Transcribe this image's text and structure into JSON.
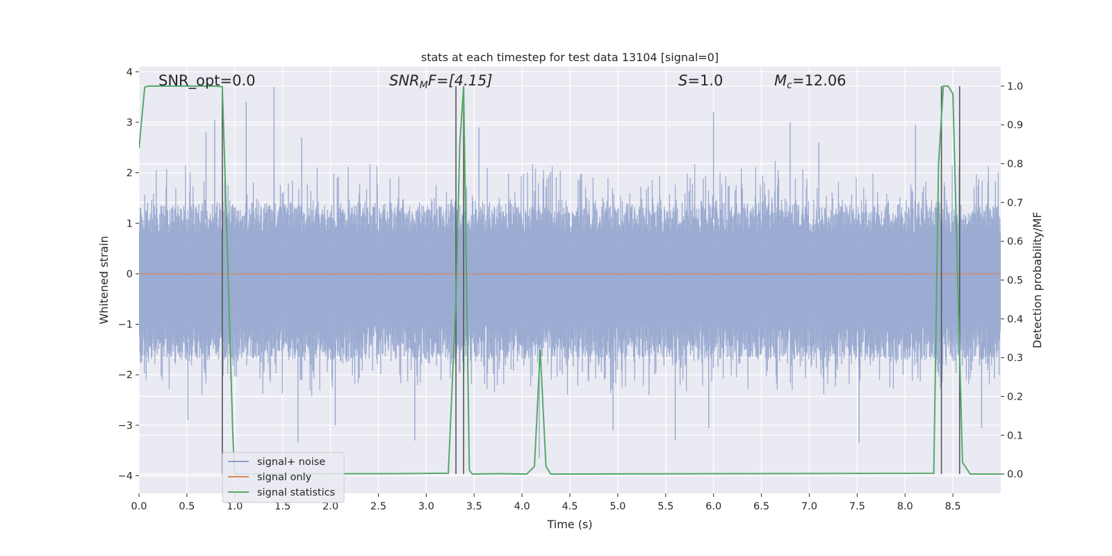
{
  "chart_data": {
    "type": "line",
    "title": "stats at each timestep for test data 13104 [signal=0]",
    "xlabel": "Time (s)",
    "ylabel_left": "Whitened strain",
    "ylabel_right": "Detection probability/MF",
    "xlim": [
      0,
      9.0
    ],
    "ylim_left": [
      -4.35,
      4.1
    ],
    "ylim_right": [
      -0.05,
      1.05
    ],
    "x_ticks": [
      0.0,
      0.5,
      1.0,
      1.5,
      2.0,
      2.5,
      3.0,
      3.5,
      4.0,
      4.5,
      5.0,
      5.5,
      6.0,
      6.5,
      7.0,
      7.5,
      8.0,
      8.5
    ],
    "x_tick_labels": [
      "0.0",
      "0.5",
      "1.0",
      "1.5",
      "2.0",
      "2.5",
      "3.0",
      "3.5",
      "4.0",
      "4.5",
      "5.0",
      "5.5",
      "6.0",
      "6.5",
      "7.0",
      "7.5",
      "8.0",
      "8.5"
    ],
    "y_left_ticks": [
      4,
      3,
      2,
      1,
      0,
      -1,
      -2,
      -3,
      -4
    ],
    "y_left_tick_labels": [
      "4",
      "3",
      "2",
      "1",
      "0",
      "−1",
      "−2",
      "−3",
      "−4"
    ],
    "y_right_ticks": [
      1.0,
      0.9,
      0.8,
      0.7,
      0.6,
      0.5,
      0.4,
      0.3,
      0.2,
      0.1,
      0.0
    ],
    "y_right_tick_labels": [
      "1.0",
      "0.9",
      "0.8",
      "0.7",
      "0.6",
      "0.5",
      "0.4",
      "0.3",
      "0.2",
      "0.1",
      "0.0"
    ],
    "grid": true,
    "legend_position": "lower-left",
    "annotations": {
      "snr_opt": "SNR_opt=0.0",
      "snr_mf_prefix": "SNR",
      "snr_mf_sub": "M",
      "snr_mf_suffix": "F=[4.15]",
      "s_prefix": "S",
      "s_suffix": "=1.0",
      "mc_prefix": "M",
      "mc_sub": "c",
      "mc_suffix": "=12.06"
    },
    "series": [
      {
        "name": "signal+ noise",
        "color": "#8da0cb",
        "kind": "noise",
        "x_range": [
          0.0,
          9.0
        ],
        "band": [
          -1.7,
          1.35
        ],
        "typical_extremes": [
          -2.5,
          2.3
        ],
        "spikes": [
          {
            "x": 0.7,
            "y": 2.8
          },
          {
            "x": 0.79,
            "y": 3.05
          },
          {
            "x": 1.12,
            "y": 3.4
          },
          {
            "x": 1.41,
            "y": 3.7
          },
          {
            "x": 1.66,
            "y": -3.35
          },
          {
            "x": 1.7,
            "y": 2.7
          },
          {
            "x": 2.05,
            "y": -3.0
          },
          {
            "x": 3.55,
            "y": 2.9
          },
          {
            "x": 4.18,
            "y": -3.65
          },
          {
            "x": 4.95,
            "y": -3.1
          },
          {
            "x": 5.95,
            "y": -3.05
          },
          {
            "x": 6.0,
            "y": 3.2
          },
          {
            "x": 6.8,
            "y": 3.0
          },
          {
            "x": 7.52,
            "y": -3.35
          },
          {
            "x": 8.11,
            "y": 2.95
          },
          {
            "x": 8.8,
            "y": -3.05
          },
          {
            "x": 0.51,
            "y": -2.9
          },
          {
            "x": 2.88,
            "y": -3.3
          },
          {
            "x": 5.6,
            "y": -3.3
          },
          {
            "x": 7.1,
            "y": 2.6
          }
        ]
      },
      {
        "name": "signal only",
        "color": "#dd8452",
        "kind": "line",
        "axis": "left",
        "x": [
          0.0,
          9.0
        ],
        "y": [
          0.0,
          0.0
        ]
      },
      {
        "name": "signal statistics",
        "color": "#55a868",
        "kind": "line",
        "axis": "right",
        "x": [
          0.0,
          0.06,
          0.1,
          0.8,
          0.87,
          0.92,
          0.98,
          1.0,
          2.7,
          3.23,
          3.31,
          3.35,
          3.39,
          3.45,
          3.48,
          3.75,
          4.05,
          4.13,
          4.19,
          4.25,
          4.3,
          8.3,
          8.35,
          8.4,
          8.45,
          8.5,
          8.55,
          8.6,
          8.68,
          8.75,
          9.0
        ],
        "y": [
          0.84,
          0.998,
          1.0,
          1.0,
          0.998,
          0.6,
          0.1,
          0.0,
          0.001,
          0.002,
          0.45,
          0.85,
          1.0,
          0.01,
          0.0,
          0.001,
          0.0,
          0.02,
          0.32,
          0.02,
          0.0,
          0.002,
          0.8,
          1.0,
          1.0,
          0.98,
          0.5,
          0.03,
          0.0,
          0.0,
          0.0
        ]
      }
    ],
    "vlines": {
      "color": "#555555",
      "axis": "right",
      "y_range": [
        0.0,
        1.0
      ],
      "x": [
        0.87,
        3.31,
        3.39,
        8.38,
        8.57
      ]
    }
  }
}
